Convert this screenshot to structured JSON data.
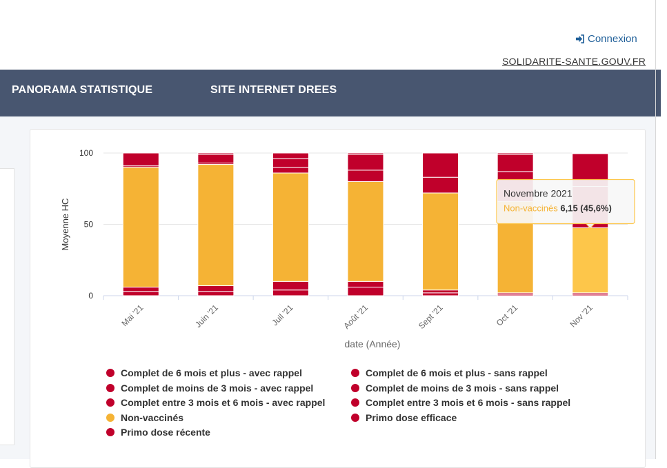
{
  "header": {
    "login_label": "Connexion",
    "site_link": "SOLIDARITE-SANTE.GOUV.FR"
  },
  "nav": {
    "items": [
      {
        "label": "PANORAMA STATISTIQUE"
      },
      {
        "label": "SITE INTERNET DREES"
      }
    ]
  },
  "colors": {
    "dark_red": "#c0002b",
    "orange": "#f5b335",
    "highlight": "#fdc64a",
    "navbar": "#485670",
    "link": "#1f5f99"
  },
  "tooltip": {
    "title": "Novembre 2021",
    "series": "Non-vaccinés",
    "value": "6,15 (45,6%)"
  },
  "chart_data": {
    "type": "bar",
    "stacked": true,
    "percent": true,
    "categories": [
      "Mai '21",
      "Juin '21",
      "Juil '21",
      "Août '21",
      "Sept '21",
      "Oct '21",
      "Nov '21"
    ],
    "xlabel": "date (Année)",
    "ylabel": "Moyenne HC",
    "ylim": [
      0,
      100
    ],
    "yticks": [
      0,
      50,
      100
    ],
    "grid": true,
    "legend_position": "bottom",
    "series": [
      {
        "name": "Primo dose récente",
        "color": "#c0002b",
        "values": [
          3,
          3,
          4,
          6,
          2,
          1,
          1
        ]
      },
      {
        "name": "Primo dose efficace",
        "color": "#c0002b",
        "values": [
          3,
          4,
          6,
          4,
          2,
          1,
          1
        ]
      },
      {
        "name": "Non-vaccinés",
        "color": "#f5b335",
        "values": [
          84,
          85,
          76,
          70,
          68,
          64,
          45.6
        ]
      },
      {
        "name": "Complet entre 3 mois et 6 mois - sans rappel",
        "color": "#c0002b",
        "values": [
          1,
          1,
          4,
          8,
          11,
          21,
          29
        ]
      },
      {
        "name": "Complet de moins de 3 mois - sans rappel",
        "color": "#c0002b",
        "values": [
          9,
          6,
          6,
          11,
          17,
          12,
          23
        ]
      },
      {
        "name": "Complet de 6 mois et plus - sans rappel",
        "color": "#c0002b",
        "values": [
          0,
          1,
          4,
          1,
          0,
          1,
          0.4
        ]
      }
    ],
    "legend": [
      {
        "label": "Complet de 6 mois et plus - avec rappel",
        "color": "#c0002b"
      },
      {
        "label": "Complet de 6 mois et plus - sans rappel",
        "color": "#c0002b"
      },
      {
        "label": "Complet de moins de 3 mois - avec rappel",
        "color": "#c0002b"
      },
      {
        "label": "Complet de moins de 3 mois - sans rappel",
        "color": "#c0002b"
      },
      {
        "label": "Complet entre 3 mois et 6 mois - avec rappel",
        "color": "#c0002b"
      },
      {
        "label": "Complet entre 3 mois et 6 mois - sans rappel",
        "color": "#c0002b"
      },
      {
        "label": "Non-vaccinés",
        "color": "#f5b335"
      },
      {
        "label": "Primo dose efficace",
        "color": "#c0002b"
      },
      {
        "label": "Primo dose récente",
        "color": "#c0002b"
      }
    ],
    "highlight": {
      "category": "Nov '21",
      "series": "Non-vaccinés"
    }
  }
}
